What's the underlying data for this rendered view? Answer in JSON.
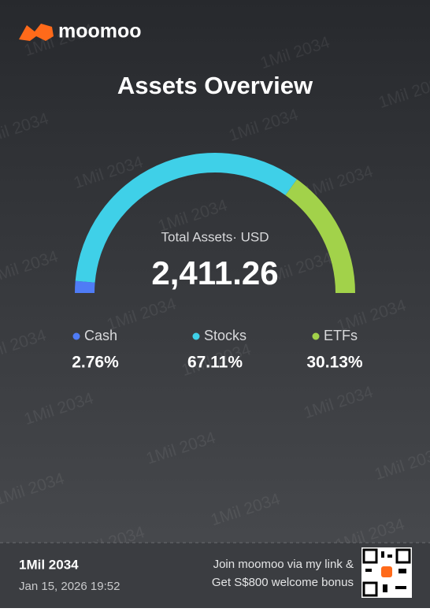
{
  "brand": "moomoo",
  "watermark": "1Mil 2034",
  "chart_data": {
    "type": "gauge",
    "title": "Assets Overview",
    "center_label": "Total Assets· USD",
    "center_value": "2,411.26",
    "categories": [
      "Cash",
      "Stocks",
      "ETFs"
    ],
    "values": [
      2.76,
      67.11,
      30.13
    ],
    "value_labels": [
      "2.76%",
      "67.11%",
      "30.13%"
    ],
    "colors": [
      "#4f7cf6",
      "#3fd0e8",
      "#a2d24a"
    ]
  },
  "footer": {
    "user": "1Mil 2034",
    "datetime": "Jan 15, 2026 19:52",
    "promo_line1": "Join moomoo via my link &",
    "promo_line2": "Get S$800 welcome bonus"
  }
}
